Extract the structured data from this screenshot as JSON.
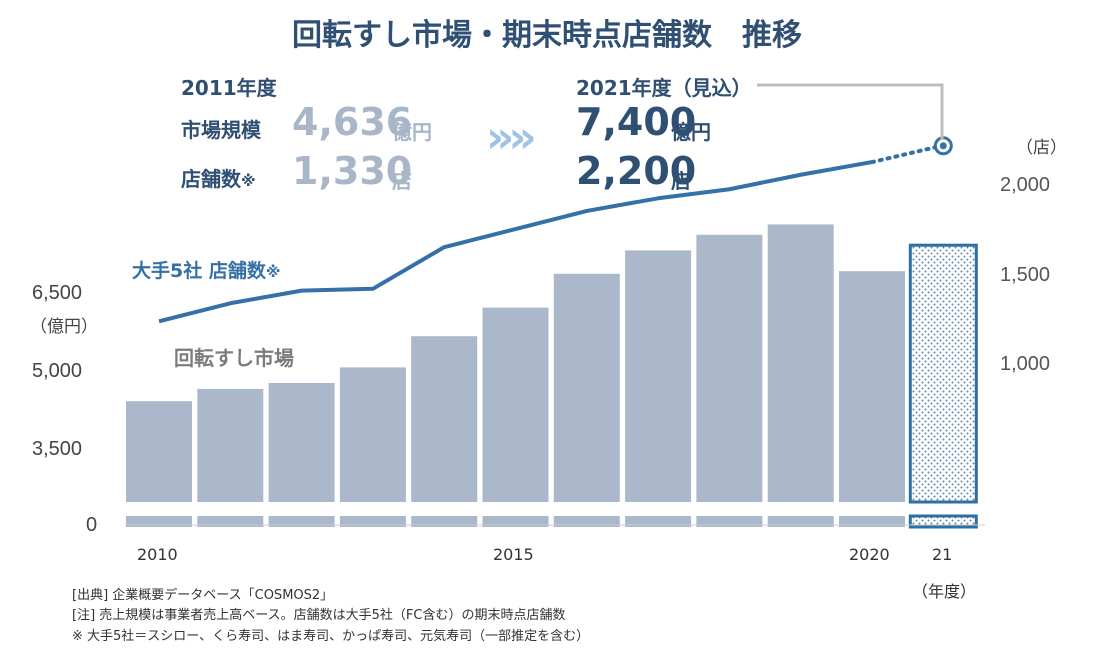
{
  "title": "回転すし市場・期末時点店舗数　推移",
  "summary": {
    "from": {
      "year_label": "2011年度",
      "market_label": "市場規模",
      "market_value": "4,636",
      "market_unit": "億円",
      "stores_label": "店舗数",
      "stores_mark": "※",
      "stores_value": "1,330",
      "stores_unit": "店"
    },
    "to": {
      "year_label": "2021年度（見込）",
      "market_value": "7,400",
      "market_unit": "億円",
      "stores_value": "2,200",
      "stores_unit": "店"
    },
    "arrow": "»»"
  },
  "labels": {
    "line_series": "大手5社 店舗数",
    "line_series_mark": "※",
    "bar_series": "回転すし市場",
    "left_unit": "（億円）",
    "right_unit": "（店）",
    "x_unit": "（年度）"
  },
  "notes": [
    "[出典] 企業概要データベース「COSMOS2」",
    "[注] 売上規模は事業者売上高ベース。店舗数は大手5社（FC含む）の期末時点店舗数",
    "※ 大手5社＝スシロー、くら寿司、はま寿司、かっぱ寿司、元気寿司（一部推定を含む）"
  ],
  "colors": {
    "bar": "#abb7ca",
    "line": "#3570a6",
    "title": "#2f4f73",
    "forecast_border": "#2e6fa3",
    "faded": "#a9b6c8",
    "connector": "#bdbdbd"
  },
  "chart_data": {
    "type": "bar+line",
    "categories": [
      "2010",
      "2011",
      "2012",
      "2013",
      "2014",
      "2015",
      "2016",
      "2017",
      "2018",
      "2019",
      "2020",
      "21"
    ],
    "x_tick_labels": {
      "0": "2010",
      "5": "2015",
      "10": "2020",
      "11": "21"
    },
    "series": [
      {
        "name": "回転すし市場",
        "type": "bar",
        "axis": "left",
        "unit": "億円",
        "values": [
          4400,
          4636,
          4750,
          5050,
          5650,
          6200,
          6850,
          7300,
          7600,
          7800,
          6900,
          7400
        ],
        "forecast_index": 11
      },
      {
        "name": "大手5社 店舗数",
        "type": "line",
        "axis": "right",
        "unit": "店",
        "values": [
          1230,
          1330,
          1400,
          1410,
          1640,
          1740,
          1840,
          1910,
          1960,
          2040,
          2110,
          2200
        ],
        "forecast_index": 11
      }
    ],
    "left_axis": {
      "ticks": [
        0,
        3500,
        5000,
        6500
      ],
      "tick_labels": [
        "0",
        "3,500",
        "5,000",
        "6,500"
      ],
      "broken": true
    },
    "right_axis": {
      "ticks": [
        1000,
        1500,
        2000
      ],
      "tick_labels": [
        "1,000",
        "1,500",
        "2,000"
      ],
      "range": [
        800,
        2200
      ]
    }
  }
}
